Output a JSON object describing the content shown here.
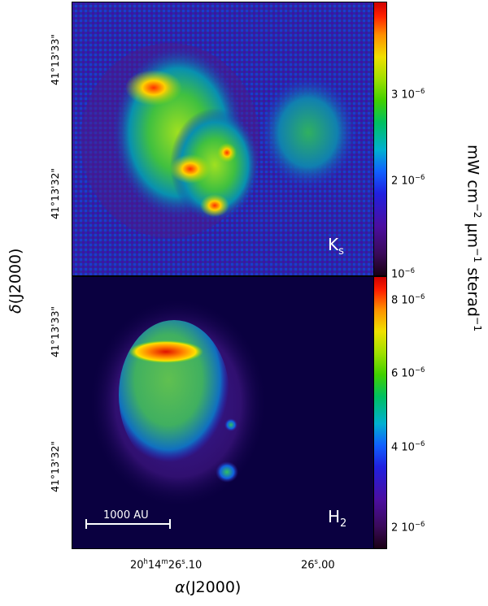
{
  "panels": [
    {
      "band_label": "K",
      "band_sub": "s",
      "y_ticks": [
        "41°13'33\"",
        "41°13'32\""
      ],
      "colorbar_ticks": [
        {
          "mant": "3",
          "exp": "−6"
        },
        {
          "mant": "2",
          "exp": "−6"
        },
        {
          "mant": "",
          "exp": "−6"
        }
      ],
      "colorbar_levels": [
        3e-06,
        2e-06,
        1e-06
      ]
    },
    {
      "band_label": "H",
      "band_sub": "2",
      "y_ticks": [
        "41°13'33\"",
        "41°13'32\""
      ],
      "colorbar_ticks": [
        {
          "mant": "8",
          "exp": "−6"
        },
        {
          "mant": "6",
          "exp": "−6"
        },
        {
          "mant": "4",
          "exp": "−6"
        },
        {
          "mant": "2",
          "exp": "−6"
        }
      ],
      "colorbar_levels": [
        8e-06,
        6e-06,
        4e-06,
        2e-06
      ]
    }
  ],
  "x_ticks": [
    {
      "h": "20",
      "m": "14",
      "s": "26",
      "frac": ".10"
    },
    {
      "s": "26",
      "frac": ".00"
    }
  ],
  "x_axis_title": "(J2000)",
  "x_axis_symbol": "α",
  "y_axis_title": "(J2000)",
  "y_axis_symbol": "δ",
  "colorbar_title": "mW cm",
  "scalebar_label": "1000 AU",
  "colormap": [
    "#1a0014",
    "#3a0a5a",
    "#4b0ea0",
    "#2020e0",
    "#1060ff",
    "#00b0d0",
    "#00c060",
    "#40d000",
    "#a0e000",
    "#f0e000",
    "#ff9000",
    "#ff2000",
    "#d00000"
  ],
  "background_color": "#100040"
}
